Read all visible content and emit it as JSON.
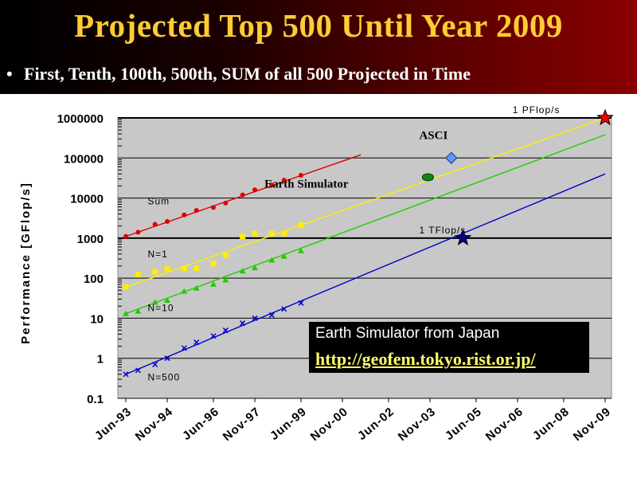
{
  "title": "Projected Top 500 Until Year 2009",
  "bullet": "First, Tenth, 100th, 500th, SUM of all 500 Projected in Time",
  "info": {
    "line1": "Earth Simulator from Japan",
    "line2": "http://geofem.tokyo.rist.or.jp/"
  },
  "chart_data": {
    "type": "scatter",
    "title": "",
    "ylabel": "Performance [GFlop/s]",
    "xlabel": "",
    "yscale": "log",
    "ylim": [
      0.1,
      1000000
    ],
    "xlim": [
      1993.45,
      2010.0
    ],
    "grid": true,
    "y_ticks": [
      "1000000",
      "100000",
      "10000",
      "1000",
      "100",
      "10",
      "1",
      "0.1"
    ],
    "y_tick_values": [
      1000000,
      100000,
      10000,
      1000,
      100,
      10,
      1,
      0.1
    ],
    "x_ticks": [
      "Jun-93",
      "Nov-94",
      "Jun-96",
      "Nov-97",
      "Jun-99",
      "Nov-00",
      "Jun-02",
      "Nov-03",
      "Jun-05",
      "Nov-06",
      "Jun-08",
      "Nov-09"
    ],
    "x_tick_values": [
      1993.45,
      1994.87,
      1996.45,
      1997.87,
      1999.45,
      2000.87,
      2002.45,
      2003.87,
      2005.45,
      2006.87,
      2008.45,
      2009.87
    ],
    "series": [
      {
        "name": "Sum",
        "color": "#dd0000",
        "marker": "circle",
        "label_x": 1994.2,
        "label_y": 7000,
        "points": [
          [
            1993.45,
            1100
          ],
          [
            1993.87,
            1400
          ],
          [
            1994.45,
            2200
          ],
          [
            1994.87,
            2600
          ],
          [
            1995.45,
            3800
          ],
          [
            1995.87,
            4900
          ],
          [
            1996.45,
            5800
          ],
          [
            1996.87,
            7500
          ],
          [
            1997.45,
            12000
          ],
          [
            1997.87,
            16000
          ],
          [
            1998.45,
            21000
          ],
          [
            1998.87,
            28000
          ],
          [
            1999.45,
            37000
          ]
        ],
        "trend": [
          [
            1993.45,
            1100
          ],
          [
            2001.5,
            120000
          ]
        ]
      },
      {
        "name": "N=1",
        "color": "#ffee00",
        "marker": "square",
        "label_x": 1994.2,
        "label_y": 330,
        "points": [
          [
            1993.45,
            60
          ],
          [
            1993.87,
            125
          ],
          [
            1994.45,
            145
          ],
          [
            1994.87,
            170
          ],
          [
            1995.45,
            175
          ],
          [
            1995.87,
            175
          ],
          [
            1996.45,
            230
          ],
          [
            1996.87,
            370
          ],
          [
            1997.45,
            1100
          ],
          [
            1997.87,
            1300
          ],
          [
            1998.45,
            1300
          ],
          [
            1998.87,
            1300
          ],
          [
            1999.45,
            2100
          ]
        ],
        "trend": [
          [
            1993.45,
            60
          ],
          [
            2009.87,
            1000000
          ]
        ]
      },
      {
        "name": "N=10",
        "color": "#22cc00",
        "marker": "triangle",
        "label_x": 1994.2,
        "label_y": 15,
        "points": [
          [
            1993.45,
            13
          ],
          [
            1993.87,
            15
          ],
          [
            1994.45,
            25
          ],
          [
            1994.87,
            28
          ],
          [
            1995.45,
            47
          ],
          [
            1995.87,
            56
          ],
          [
            1996.45,
            70
          ],
          [
            1996.87,
            90
          ],
          [
            1997.45,
            150
          ],
          [
            1997.87,
            180
          ],
          [
            1998.45,
            280
          ],
          [
            1998.87,
            350
          ],
          [
            1999.45,
            480
          ]
        ],
        "trend": [
          [
            1993.45,
            13
          ],
          [
            2009.87,
            380000
          ]
        ]
      },
      {
        "name": "N=500",
        "color": "#0000cc",
        "marker": "x",
        "label_x": 1994.2,
        "label_y": 0.28,
        "points": [
          [
            1993.45,
            0.4
          ],
          [
            1993.87,
            0.5
          ],
          [
            1994.45,
            0.7
          ],
          [
            1994.87,
            1.0
          ],
          [
            1995.45,
            1.8
          ],
          [
            1995.87,
            2.5
          ],
          [
            1996.45,
            3.6
          ],
          [
            1996.87,
            5
          ],
          [
            1997.45,
            7.5
          ],
          [
            1997.87,
            10
          ],
          [
            1998.45,
            12
          ],
          [
            1998.87,
            17
          ],
          [
            1999.45,
            24
          ]
        ],
        "trend": [
          [
            1993.45,
            0.4
          ],
          [
            2009.87,
            40000
          ]
        ]
      }
    ],
    "reference_lines": [
      {
        "label": "1 PFlop/s",
        "value": 1000000,
        "label_x": 2006.7
      },
      {
        "label": "1 TFlop/s",
        "value": 1000,
        "label_x": 2003.5
      }
    ],
    "annotations": [
      {
        "label": "ASCI",
        "x": 2004.6,
        "y": 100000,
        "marker": "diamond",
        "color": "#5599ff",
        "label_x": 2003.5,
        "label_y": 300000
      },
      {
        "label": "Earth Simulator",
        "x": 2003.8,
        "y": 33000,
        "marker": "ellipse",
        "color": "#118811",
        "label_x": 1998.2,
        "label_y": 18000
      },
      {
        "label": "",
        "x": 2005.0,
        "y": 1000,
        "marker": "star",
        "color": "#000088"
      },
      {
        "label": "",
        "x": 2009.87,
        "y": 1000000,
        "marker": "star",
        "color": "#ee0000"
      }
    ]
  }
}
